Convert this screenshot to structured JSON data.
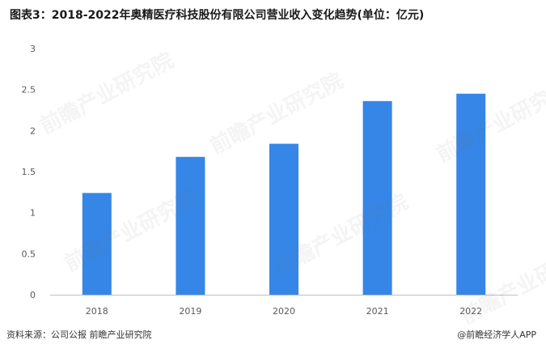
{
  "title": "图表3：2018-2022年奥精医疗科技股份有限公司营业收入变化趋势(单位：亿元)",
  "footer": {
    "source": "资料来源：公司公报 前瞻产业研究院",
    "credit": "@前瞻经济学人APP"
  },
  "watermark": "前瞻产业研究院",
  "colors": {
    "bar": "#3686e7",
    "axis": "#bfbfbf",
    "text": "#595959"
  },
  "chart_data": {
    "type": "bar",
    "title": "图表3：2018-2022年奥精医疗科技股份有限公司营业收入变化趋势(单位：亿元)",
    "categories": [
      "2018",
      "2019",
      "2020",
      "2021",
      "2022"
    ],
    "values": [
      1.24,
      1.68,
      1.84,
      2.36,
      2.45
    ],
    "ylim": [
      0,
      3
    ],
    "yticks": [
      "0",
      "0.5",
      "1",
      "1.5",
      "2",
      "2.5",
      "3"
    ],
    "xlabel": "",
    "ylabel": "",
    "grid": false,
    "legend": "none"
  }
}
